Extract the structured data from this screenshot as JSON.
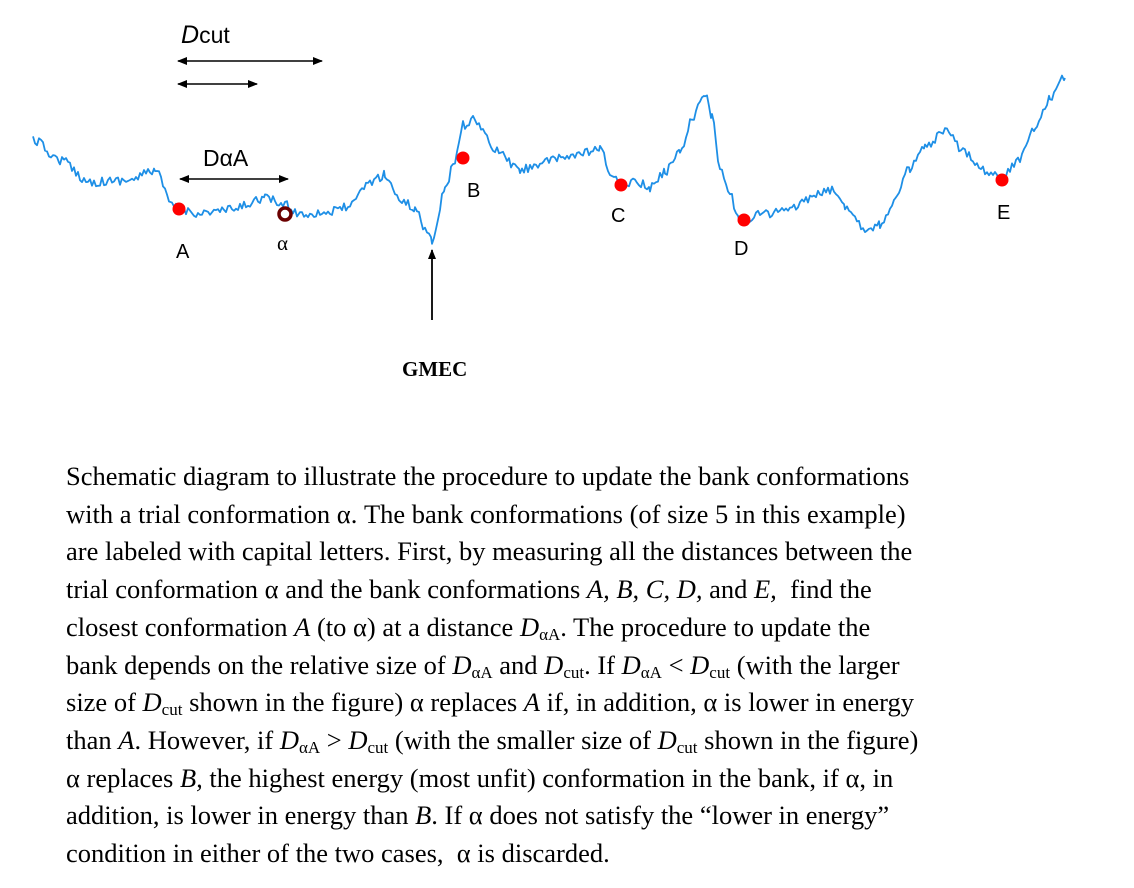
{
  "diagram": {
    "dcut_label": {
      "main": "D",
      "sub": "cut"
    },
    "daa_label": "DαA",
    "gmec_label": "GMEC",
    "alpha_label": "α",
    "bank_labels": {
      "a": "A",
      "b": "B",
      "c": "C",
      "d": "D",
      "e": "E"
    },
    "colors": {
      "landscape": "#1e8fe6",
      "bank_marker": "#ff0000",
      "trial_marker": "#6b0000",
      "arrow": "#000000"
    }
  },
  "caption": {
    "l1": "Schematic diagram to illustrate the procedure to update the bank conformations",
    "l2": "with a trial conformation α. The bank conformations (of size 5 in this example)",
    "l3": "are labeled with capital letters. First, by measuring all the distances between the",
    "l4a": "trial conformation α and the bank conformations ",
    "l4b": "A, B, C, D,",
    "l4c": " and ",
    "l4d": "E,",
    "l4e": "  find the",
    "l5a": "closest conformation ",
    "l5b": "A",
    "l5c": " (to α) at a distance ",
    "l5d": "D",
    "l5e": "αA",
    "l5f": ". The procedure to update the",
    "l6a": "bank depends on the relative size of ",
    "l6b": "D",
    "l6c": "αA",
    "l6d": " and ",
    "l6e": "D",
    "l6f": "cut",
    "l6g": ". If ",
    "l6h": "D",
    "l6i": "αA",
    "l6j": " < ",
    "l6k": "D",
    "l6l": "cut",
    "l6m": " (with the larger",
    "l7a": "size of ",
    "l7b": "D",
    "l7c": "cut",
    "l7d": " shown in the figure) α replaces ",
    "l7e": "A",
    "l7f": " if, in addition, α is lower in energy",
    "l8a": "than ",
    "l8b": "A",
    "l8c": ". However, if ",
    "l8d": "D",
    "l8e": "αA",
    "l8f": " > ",
    "l8g": "D",
    "l8h": "cut",
    "l8i": " (with the smaller size of ",
    "l8j": "D",
    "l8k": "cut",
    "l8l": " shown in the figure)",
    "l9a": "α replaces ",
    "l9b": "B,",
    "l9c": " the highest energy (most unfit) conformation in the bank, if α, in",
    "l10a": "addition, is lower in energy than ",
    "l10b": "B",
    "l10c": ". If α does not satisfy the “lower in energy”",
    "l11": "condition in either of the two cases,  α is discarded."
  }
}
